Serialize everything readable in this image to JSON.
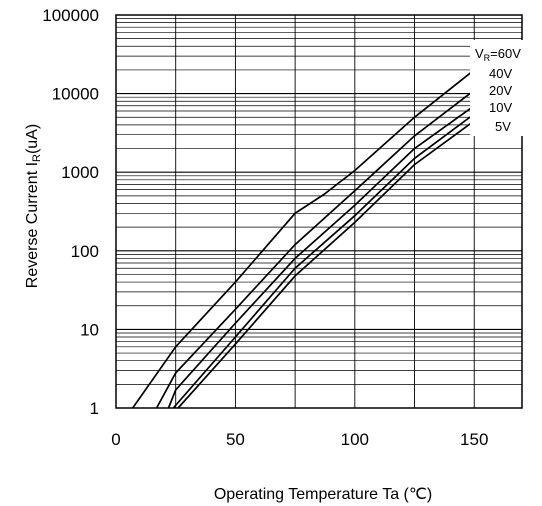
{
  "chart_data": {
    "type": "line",
    "title": "",
    "xlabel": "Operating Temperature   Ta (℃)",
    "ylabel_main": "Reverse Current  I",
    "ylabel_sub": "R",
    "ylabel_unit": "(uA)",
    "xlim": [
      0,
      170
    ],
    "ylim": [
      1,
      100000
    ],
    "yscale": "log",
    "grid": true,
    "x_ticks": [
      0,
      50,
      100,
      150
    ],
    "x_tick_labels": [
      "0",
      "50",
      "100",
      "150"
    ],
    "y_ticks": [
      1,
      10,
      100,
      1000,
      10000,
      100000
    ],
    "y_tick_labels": [
      "1",
      "10",
      "100",
      "1000",
      "10000",
      "100000"
    ],
    "legend_position": "top-right",
    "legend_v_prefix": "V",
    "legend_v_sub": "R",
    "series": [
      {
        "name": "=60V",
        "x": [
          7,
          25,
          50,
          75,
          87,
          100,
          125,
          150
        ],
        "y": [
          1,
          6,
          40,
          300,
          520,
          1050,
          5000,
          20000
        ]
      },
      {
        "name": "40V",
        "x": [
          17,
          25,
          50,
          75,
          100,
          125,
          150
        ],
        "y": [
          1,
          2.8,
          18,
          120,
          580,
          2900,
          11000
        ]
      },
      {
        "name": "20V",
        "x": [
          22,
          25,
          50,
          75,
          100,
          125,
          150
        ],
        "y": [
          1,
          1.7,
          12,
          80,
          380,
          2000,
          7000
        ]
      },
      {
        "name": "10V",
        "x": [
          24,
          50,
          75,
          100,
          125,
          150
        ],
        "y": [
          1,
          8,
          60,
          280,
          1500,
          5500
        ]
      },
      {
        "name": "5V",
        "x": [
          26,
          50,
          75,
          100,
          125,
          150
        ],
        "y": [
          1,
          6.5,
          48,
          230,
          1250,
          4500
        ]
      }
    ]
  }
}
